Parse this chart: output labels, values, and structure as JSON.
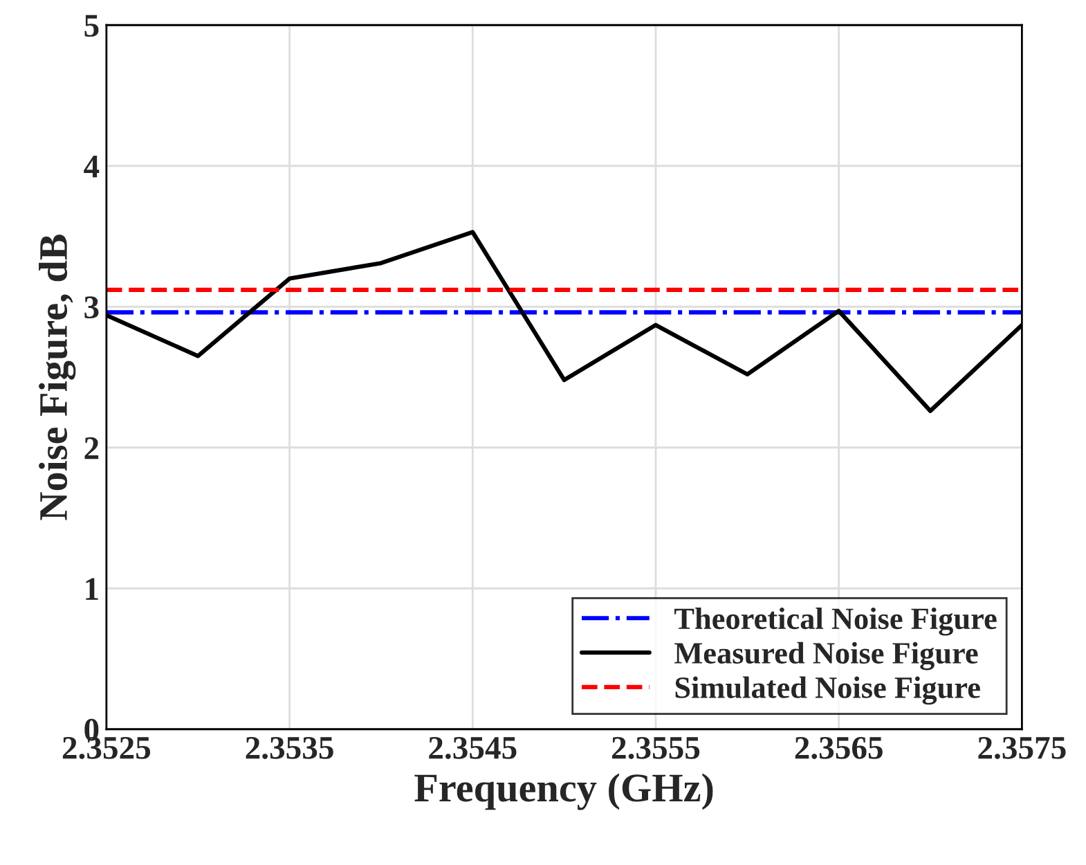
{
  "chart_data": {
    "type": "line",
    "xlabel": "Frequency (GHz)",
    "ylabel": "Noise Figure, dB",
    "xlim": [
      2.3525,
      2.3575
    ],
    "xticks": [
      2.3525,
      2.3535,
      2.3545,
      2.3555,
      2.3565,
      2.3575
    ],
    "ylim": [
      0,
      5
    ],
    "yticks": [
      0,
      1,
      2,
      3,
      4,
      5
    ],
    "grid": true,
    "legend": "bottom right",
    "marker": "none",
    "series": [
      {
        "name": "Theoretical Noise Figure",
        "color": "#0000ff",
        "line_style": "dashdot",
        "x": [
          2.3525,
          2.3575
        ],
        "values": [
          2.96,
          2.96
        ]
      },
      {
        "name": "Measured Noise Figure",
        "color": "#000000",
        "line_style": "solid",
        "x": [
          2.3525,
          2.353,
          2.3535,
          2.354,
          2.3545,
          2.355,
          2.3555,
          2.356,
          2.3565,
          2.357,
          2.3575
        ],
        "values": [
          2.94,
          2.65,
          3.2,
          3.31,
          3.53,
          2.48,
          2.87,
          2.52,
          2.97,
          2.26,
          2.87
        ]
      },
      {
        "name": "Simulated Noise Figure",
        "color": "#ff0000",
        "line_style": "dashed",
        "x": [
          2.3525,
          2.3575
        ],
        "values": [
          3.12,
          3.12
        ]
      }
    ]
  }
}
